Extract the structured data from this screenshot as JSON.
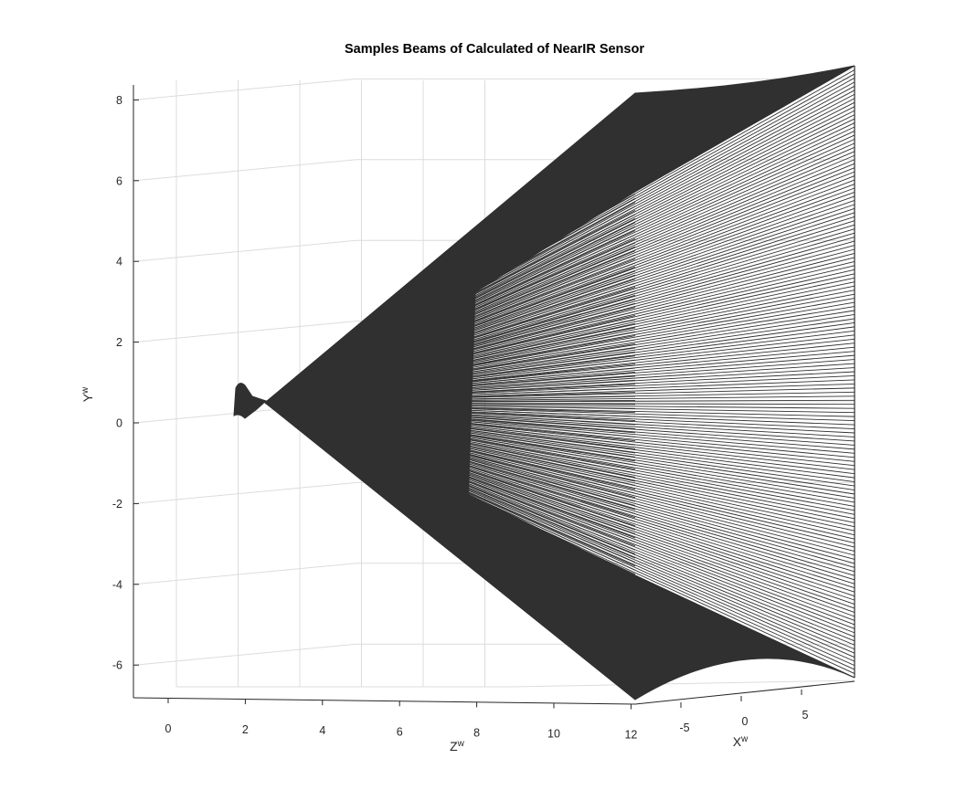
{
  "chart_data": {
    "type": "surface-3d",
    "title": "Samples Beams of Calculated of NearIR Sensor",
    "xlabel": "Z",
    "xlabel_sup": "w",
    "ylabel": "Y",
    "ylabel_sup": "w",
    "zlabel": "X",
    "zlabel_sup": "w",
    "z_axis_ticks": [
      "0",
      "2",
      "4",
      "6",
      "8",
      "10",
      "12"
    ],
    "z_axis_range": [
      0,
      12
    ],
    "y_axis_ticks": [
      "8",
      "6",
      "4",
      "2",
      "0",
      "-2",
      "-4",
      "-6"
    ],
    "y_axis_range": [
      -6.8,
      8.5
    ],
    "x_axis_ticks": [
      "-5",
      "0",
      "5"
    ],
    "x_axis_range": [
      -8,
      8
    ],
    "grid": true,
    "colors": {
      "beam": "#303030",
      "grid": "#dcdcdc",
      "axis": "#262626",
      "background": "#ffffff"
    },
    "series": [
      {
        "values": {
          "sensor_origin_z": 2.0,
          "sensor_origin_y": 0.5,
          "beam_end_z": 12,
          "beam_end_y_top": 8.2,
          "beam_end_y_bottom": -6.8,
          "beam_end_x_range": [
            -8,
            8
          ],
          "beam_count": 150
        }
      }
    ]
  }
}
